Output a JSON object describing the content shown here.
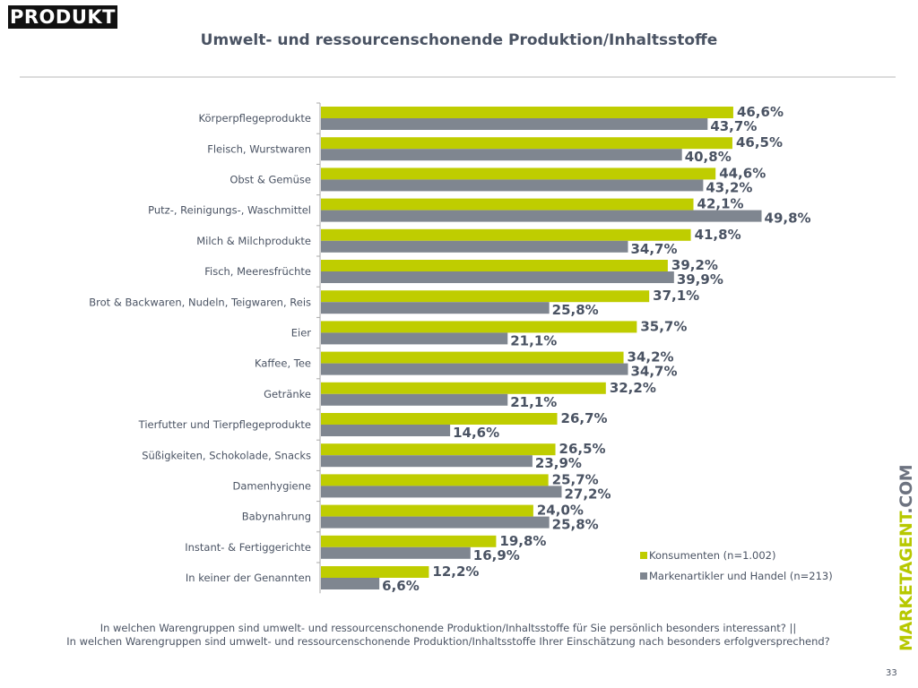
{
  "logo": {
    "text": "PRODUKT"
  },
  "header": {
    "title": "Umwelt- und ressourcenschonende Produktion/Inhaltsstoffe"
  },
  "chart_data": {
    "type": "bar",
    "orientation": "horizontal",
    "categories": [
      "Körperpflegeprodukte",
      "Fleisch, Wurstwaren",
      "Obst & Gemüse",
      "Putz-, Reinigungs-, Waschmittel",
      "Milch & Milchprodukte",
      "Fisch, Meeresfrüchte",
      "Brot & Backwaren, Nudeln, Teigwaren, Reis",
      "Eier",
      "Kaffee, Tee",
      "Getränke",
      "Tierfutter und Tierpflegeprodukte",
      "Süßigkeiten, Schokolade, Snacks",
      "Damenhygiene",
      "Babynahrung",
      "Instant- & Fertiggerichte",
      "In keiner der Genannten"
    ],
    "series": [
      {
        "name": "Konsumenten (n=1.002)",
        "color": "#bfcd00",
        "values": [
          46.6,
          46.5,
          44.6,
          42.1,
          41.8,
          39.2,
          37.1,
          35.7,
          34.2,
          32.2,
          26.7,
          26.5,
          25.7,
          24.0,
          19.8,
          12.2
        ]
      },
      {
        "name": "Markenartikler und Handel (n=213)",
        "color": "#7f8690",
        "values": [
          43.7,
          40.8,
          43.2,
          49.8,
          34.7,
          39.9,
          25.8,
          21.1,
          34.7,
          21.1,
          14.6,
          23.9,
          27.2,
          25.8,
          16.9,
          6.6
        ]
      }
    ],
    "unit": "%",
    "xlim": [
      0,
      50
    ],
    "grid": false,
    "legend": "bottom-right",
    "data_labels": true
  },
  "footer": {
    "question_1": "In welchen Warengruppen sind umwelt- und ressourcenschonende Produktion/Inhaltsstoffe für Sie persönlich besonders interessant? ||",
    "question_2": "In welchen Warengruppen sind umwelt- und ressourcenschonende Produktion/Inhaltsstoffe Ihrer Einschätzung nach besonders erfolgversprechend?",
    "brand_main": "MARKETAGENT",
    "brand_suffix": ".COM",
    "page_number": "33"
  }
}
